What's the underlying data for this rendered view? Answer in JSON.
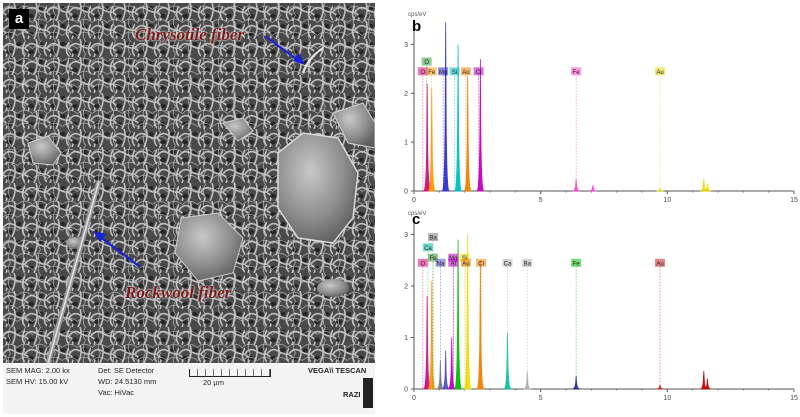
{
  "panel_a": {
    "letter": "a",
    "chrysotile_label": "Chrysotile fiber",
    "rockwool_label": "Rockwool fiber",
    "footer": {
      "mag": "SEM MAG: 2.00 kx",
      "hv": "SEM HV: 15.00 kV",
      "det": "Det: SE Detector",
      "wd": "WD: 24.5130 mm",
      "vac": "Vac: HiVac",
      "scale": "20 µm",
      "brand": "VEGA\\\\ TESCAN",
      "lab": "RAZI"
    }
  },
  "chart_data": [
    {
      "type": "line",
      "panel": "b",
      "ylabel": "cps/eV",
      "xlim": [
        0,
        15
      ],
      "ylim": [
        0,
        3.5
      ],
      "xticks": [
        "0",
        "5",
        "10",
        "15"
      ],
      "yticks": [
        "0",
        "1",
        "2",
        "3"
      ],
      "peaks": [
        {
          "el": "O",
          "x": 0.52,
          "y": 2.2,
          "color": "#e6007e"
        },
        {
          "el": "Fe",
          "x": 0.7,
          "y": 2.1,
          "color": "#ff9900"
        },
        {
          "el": "Mg",
          "x": 1.25,
          "y": 3.45,
          "color": "#3030d0"
        },
        {
          "el": "Si",
          "x": 1.74,
          "y": 3.0,
          "color": "#00c0c0"
        },
        {
          "el": "Au",
          "x": 2.12,
          "y": 2.35,
          "color": "#f08000"
        },
        {
          "el": "Cl",
          "x": 2.62,
          "y": 2.7,
          "color": "#c000c0"
        },
        {
          "el": "Fe",
          "x": 6.4,
          "y": 0.25,
          "color": "#ff44cc"
        },
        {
          "el": "",
          "x": 7.06,
          "y": 0.12,
          "color": "#ff44cc"
        },
        {
          "el": "Au",
          "x": 9.71,
          "y": 0.05,
          "color": "#e8d800"
        },
        {
          "el": "",
          "x": 11.44,
          "y": 0.25,
          "color": "#e8d800"
        },
        {
          "el": "",
          "x": 11.58,
          "y": 0.15,
          "color": "#e8d800"
        }
      ],
      "labels": [
        {
          "text": "O",
          "x": 0.35,
          "y": 2.45,
          "color": "#e6007e"
        },
        {
          "text": "Fe",
          "x": 0.7,
          "y": 2.45,
          "color": "#ff9900"
        },
        {
          "text": "Mg",
          "x": 1.15,
          "y": 2.45,
          "color": "#3030d0"
        },
        {
          "text": "Si",
          "x": 1.6,
          "y": 2.45,
          "color": "#00c0c0"
        },
        {
          "text": "Au",
          "x": 2.05,
          "y": 2.45,
          "color": "#f08000"
        },
        {
          "text": "Cl",
          "x": 2.55,
          "y": 2.45,
          "color": "#c000c0"
        },
        {
          "text": "O",
          "x": 0.5,
          "y": 2.65,
          "color": "#33a033"
        },
        {
          "text": "Fe",
          "x": 6.4,
          "y": 2.45,
          "color": "#ff44cc"
        },
        {
          "text": "Au",
          "x": 9.71,
          "y": 2.45,
          "color": "#e8d800"
        }
      ]
    },
    {
      "type": "line",
      "panel": "c",
      "ylabel": "cps/eV",
      "xlim": [
        0,
        15
      ],
      "ylim": [
        0,
        3.3
      ],
      "xticks": [
        "0",
        "5",
        "10",
        "15"
      ],
      "yticks": [
        "0",
        "1",
        "2",
        "3"
      ],
      "peaks": [
        {
          "el": "O",
          "x": 0.52,
          "y": 1.8,
          "color": "#e6007e"
        },
        {
          "el": "Fe",
          "x": 0.7,
          "y": 2.1,
          "color": "#ff9900"
        },
        {
          "el": "Na",
          "x": 1.04,
          "y": 0.55,
          "color": "#808080"
        },
        {
          "el": "Mg",
          "x": 1.25,
          "y": 0.75,
          "color": "#5050c0"
        },
        {
          "el": "Al",
          "x": 1.49,
          "y": 1.0,
          "color": "#c000c0"
        },
        {
          "el": "Si",
          "x": 1.74,
          "y": 2.9,
          "color": "#00c000"
        },
        {
          "el": "Au",
          "x": 2.12,
          "y": 3.0,
          "color": "#e8e000"
        },
        {
          "el": "Cl",
          "x": 2.62,
          "y": 2.5,
          "color": "#f08000"
        },
        {
          "el": "Ca",
          "x": 3.69,
          "y": 1.1,
          "color": "#00c0a0"
        },
        {
          "el": "Ba",
          "x": 4.47,
          "y": 0.35,
          "color": "#b0b0b0"
        },
        {
          "el": "Fe",
          "x": 6.4,
          "y": 0.25,
          "color": "#2020a0"
        },
        {
          "el": "Au",
          "x": 9.71,
          "y": 0.08,
          "color": "#d02020"
        },
        {
          "el": "",
          "x": 11.44,
          "y": 0.35,
          "color": "#c00000"
        },
        {
          "el": "",
          "x": 11.58,
          "y": 0.2,
          "color": "#c00000"
        }
      ],
      "labels": [
        {
          "text": "Ba",
          "x": 0.75,
          "y": 2.95,
          "color": "#808080"
        },
        {
          "text": "Ca",
          "x": 0.55,
          "y": 2.75,
          "color": "#00c0a0"
        },
        {
          "text": "O",
          "x": 0.35,
          "y": 2.45,
          "color": "#e6007e"
        },
        {
          "text": "Fe",
          "x": 0.75,
          "y": 2.55,
          "color": "#33a033"
        },
        {
          "text": "Na",
          "x": 1.05,
          "y": 2.45,
          "color": "#5050c0"
        },
        {
          "text": "Mg",
          "x": 1.55,
          "y": 2.55,
          "color": "#c000c0"
        },
        {
          "text": "Al",
          "x": 1.55,
          "y": 2.45,
          "color": "#c000c0"
        },
        {
          "text": "Si",
          "x": 2.0,
          "y": 2.55,
          "color": "#e8e000"
        },
        {
          "text": "Au",
          "x": 2.05,
          "y": 2.45,
          "color": "#f08000"
        },
        {
          "text": "Cl",
          "x": 2.65,
          "y": 2.45,
          "color": "#f08000"
        },
        {
          "text": "Ca",
          "x": 3.69,
          "y": 2.45,
          "color": "#b0b0b0"
        },
        {
          "text": "Ba",
          "x": 4.47,
          "y": 2.45,
          "color": "#b0b0b0"
        },
        {
          "text": "Fe",
          "x": 6.4,
          "y": 2.45,
          "color": "#00c000"
        },
        {
          "text": "Au",
          "x": 9.71,
          "y": 2.45,
          "color": "#d02020"
        }
      ]
    }
  ]
}
